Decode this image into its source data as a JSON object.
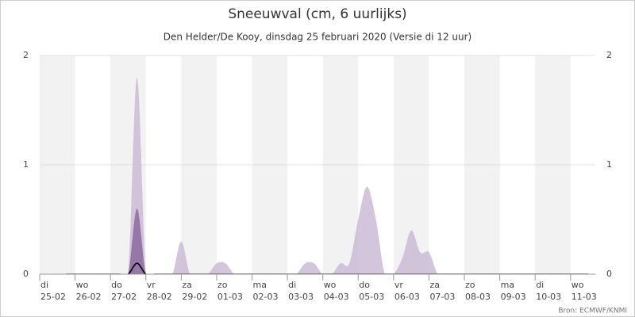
{
  "chart_data": {
    "type": "area",
    "title": "Sneeuwval (cm, 6 uurlijks)",
    "subtitle": "Den Helder/De Kooy, dinsdag 25 februari 2020 (Versie di 12 uur)",
    "credit": "Bron: ECMWF/KNMI",
    "xlim": [
      0,
      15.7
    ],
    "xticks": [
      {
        "value": 0,
        "label": "di 25-02"
      },
      {
        "value": 1,
        "label": "wo 26-02"
      },
      {
        "value": 2,
        "label": "do 27-02"
      },
      {
        "value": 3,
        "label": "vr 28-02"
      },
      {
        "value": 4,
        "label": "za 29-02"
      },
      {
        "value": 5,
        "label": "zo 01-03"
      },
      {
        "value": 6,
        "label": "ma 02-03"
      },
      {
        "value": 7,
        "label": "di 03-03"
      },
      {
        "value": 8,
        "label": "wo 04-03"
      },
      {
        "value": 9,
        "label": "do 05-03"
      },
      {
        "value": 10,
        "label": "vr 06-03"
      },
      {
        "value": 11,
        "label": "za 07-03"
      },
      {
        "value": 12,
        "label": "zo 08-03"
      },
      {
        "value": 13,
        "label": "ma 09-03"
      },
      {
        "value": 14,
        "label": "di 10-03"
      },
      {
        "value": 15,
        "label": "wo 11-03"
      }
    ],
    "ylim": [
      0,
      2
    ],
    "yticks": [
      0,
      1,
      2
    ],
    "y2lim": [
      0,
      2
    ],
    "y2ticks": [
      0,
      1,
      2
    ],
    "grid": true,
    "x": [
      0.75,
      1,
      1.25,
      1.5,
      1.75,
      2,
      2.25,
      2.5,
      2.75,
      3,
      3.25,
      3.5,
      3.75,
      4,
      4.25,
      4.5,
      4.75,
      5,
      5.25,
      5.5,
      5.75,
      6,
      6.25,
      6.5,
      6.75,
      7,
      7.25,
      7.5,
      7.75,
      8,
      8.25,
      8.5,
      8.75,
      9,
      9.25,
      9.5,
      9.75,
      10,
      10.25,
      10.5,
      10.75,
      11,
      11.25,
      11.5,
      11.75,
      12,
      12.25,
      12.5,
      12.75,
      13,
      13.25,
      13.5,
      13.75,
      14,
      14.25,
      14.5,
      14.75,
      15,
      15.25,
      15.5
    ],
    "series": [
      {
        "color": "#cbbcd6",
        "kind": "area",
        "values": [
          0,
          0,
          0,
          0,
          0,
          0,
          0,
          0,
          1.8,
          0,
          0,
          0,
          0,
          0.3,
          0,
          0,
          0,
          0.1,
          0.1,
          0,
          0,
          0,
          0,
          0,
          0,
          0,
          0,
          0.1,
          0.1,
          0,
          0,
          0.1,
          0.1,
          0.5,
          0.8,
          0.5,
          0,
          0,
          0.15,
          0.4,
          0.2,
          0.2,
          0,
          0,
          0,
          0,
          0,
          0,
          0,
          0,
          0,
          0,
          0,
          0,
          0,
          0,
          0,
          0,
          0,
          0
        ]
      },
      {
        "color": "#8b6a9f",
        "kind": "area",
        "values": [
          0,
          0,
          0,
          0,
          0,
          0,
          0,
          0,
          0.6,
          0,
          0,
          0,
          0,
          0,
          0,
          0,
          0,
          0,
          0,
          0,
          0,
          0,
          0,
          0,
          0,
          0,
          0,
          0,
          0,
          0,
          0,
          0,
          0,
          0,
          0,
          0,
          0,
          0,
          0,
          0,
          0,
          0,
          0,
          0,
          0,
          0,
          0,
          0,
          0,
          0,
          0,
          0,
          0,
          0,
          0,
          0,
          0,
          0,
          0,
          0
        ]
      },
      {
        "color": "#000000",
        "kind": "line",
        "values": [
          0,
          0,
          0,
          0,
          0,
          0,
          0,
          0,
          0.1,
          0,
          0,
          0,
          0,
          0,
          0,
          0,
          0,
          0,
          0,
          0,
          0,
          0,
          0,
          0,
          0,
          0,
          0,
          0,
          0,
          0,
          0,
          0,
          0,
          0,
          0,
          0,
          0,
          0,
          0,
          0,
          0,
          0,
          0,
          0,
          0,
          0,
          0,
          0,
          0,
          0,
          0,
          0,
          0,
          0,
          0,
          0,
          0,
          0,
          0,
          0
        ]
      }
    ]
  }
}
